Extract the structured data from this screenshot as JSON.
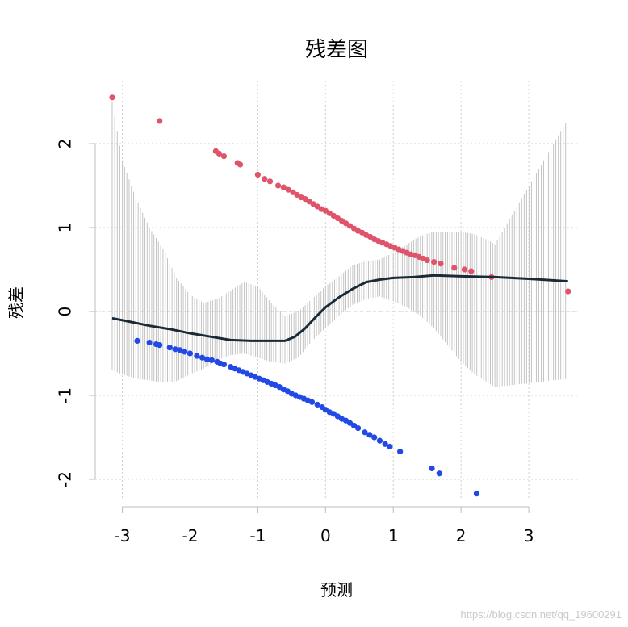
{
  "chart_data": {
    "type": "scatter",
    "title": "残差图",
    "xlabel": "预测",
    "ylabel": "残差",
    "xlim": [
      -3.4,
      3.75
    ],
    "ylim": [
      -2.25,
      2.75
    ],
    "x_ticks": [
      -3,
      -2,
      -1,
      0,
      1,
      2,
      3
    ],
    "y_ticks": [
      -2,
      -1,
      0,
      1,
      2
    ],
    "grid": true,
    "zero_line": 0,
    "colors": {
      "positive": "#df536b",
      "negative": "#2249e6",
      "fit": "#1a2a36",
      "band": "#c3c3c3"
    },
    "series": [
      {
        "values": [
          [
            -3.15,
            2.55
          ],
          [
            -2.45,
            2.27
          ],
          [
            -1.62,
            1.91
          ],
          [
            -1.57,
            1.88
          ],
          [
            -1.5,
            1.85
          ],
          [
            -1.3,
            1.77
          ],
          [
            -1.26,
            1.75
          ],
          [
            -1.0,
            1.63
          ],
          [
            -0.9,
            1.58
          ],
          [
            -0.82,
            1.55
          ],
          [
            -0.7,
            1.5
          ],
          [
            -0.62,
            1.48
          ],
          [
            -0.55,
            1.45
          ],
          [
            -0.48,
            1.42
          ],
          [
            -0.42,
            1.39
          ],
          [
            -0.36,
            1.36
          ],
          [
            -0.3,
            1.34
          ],
          [
            -0.24,
            1.31
          ],
          [
            -0.18,
            1.28
          ],
          [
            -0.12,
            1.25
          ],
          [
            -0.06,
            1.22
          ],
          [
            0.0,
            1.2
          ],
          [
            0.06,
            1.17
          ],
          [
            0.12,
            1.14
          ],
          [
            0.18,
            1.11
          ],
          [
            0.24,
            1.08
          ],
          [
            0.3,
            1.05
          ],
          [
            0.36,
            1.02
          ],
          [
            0.42,
            0.99
          ],
          [
            0.48,
            0.96
          ],
          [
            0.54,
            0.94
          ],
          [
            0.6,
            0.91
          ],
          [
            0.66,
            0.89
          ],
          [
            0.72,
            0.86
          ],
          [
            0.78,
            0.84
          ],
          [
            0.84,
            0.82
          ],
          [
            0.9,
            0.8
          ],
          [
            0.96,
            0.78
          ],
          [
            1.02,
            0.76
          ],
          [
            1.08,
            0.74
          ],
          [
            1.14,
            0.72
          ],
          [
            1.2,
            0.7
          ],
          [
            1.26,
            0.68
          ],
          [
            1.32,
            0.67
          ],
          [
            1.38,
            0.65
          ],
          [
            1.44,
            0.63
          ],
          [
            1.5,
            0.61
          ],
          [
            1.6,
            0.59
          ],
          [
            1.7,
            0.57
          ],
          [
            1.9,
            0.52
          ],
          [
            2.05,
            0.5
          ],
          [
            2.15,
            0.48
          ],
          [
            2.45,
            0.41
          ],
          [
            3.58,
            0.24
          ]
        ]
      },
      {
        "values": [
          [
            -2.78,
            -0.35
          ],
          [
            -2.6,
            -0.37
          ],
          [
            -2.5,
            -0.39
          ],
          [
            -2.45,
            -0.4
          ],
          [
            -2.3,
            -0.43
          ],
          [
            -2.22,
            -0.45
          ],
          [
            -2.15,
            -0.46
          ],
          [
            -2.08,
            -0.48
          ],
          [
            -2.0,
            -0.5
          ],
          [
            -1.9,
            -0.53
          ],
          [
            -1.82,
            -0.55
          ],
          [
            -1.75,
            -0.57
          ],
          [
            -1.68,
            -0.58
          ],
          [
            -1.6,
            -0.6
          ],
          [
            -1.55,
            -0.62
          ],
          [
            -1.5,
            -0.63
          ],
          [
            -1.4,
            -0.66
          ],
          [
            -1.34,
            -0.68
          ],
          [
            -1.28,
            -0.7
          ],
          [
            -1.22,
            -0.72
          ],
          [
            -1.16,
            -0.74
          ],
          [
            -1.1,
            -0.76
          ],
          [
            -1.04,
            -0.78
          ],
          [
            -0.98,
            -0.8
          ],
          [
            -0.92,
            -0.82
          ],
          [
            -0.86,
            -0.84
          ],
          [
            -0.8,
            -0.86
          ],
          [
            -0.74,
            -0.88
          ],
          [
            -0.68,
            -0.9
          ],
          [
            -0.62,
            -0.93
          ],
          [
            -0.56,
            -0.95
          ],
          [
            -0.5,
            -0.98
          ],
          [
            -0.44,
            -1.0
          ],
          [
            -0.38,
            -1.02
          ],
          [
            -0.32,
            -1.04
          ],
          [
            -0.26,
            -1.06
          ],
          [
            -0.2,
            -1.08
          ],
          [
            -0.12,
            -1.11
          ],
          [
            -0.05,
            -1.14
          ],
          [
            0.0,
            -1.17
          ],
          [
            0.06,
            -1.2
          ],
          [
            0.12,
            -1.22
          ],
          [
            0.18,
            -1.25
          ],
          [
            0.24,
            -1.28
          ],
          [
            0.3,
            -1.3
          ],
          [
            0.36,
            -1.33
          ],
          [
            0.42,
            -1.36
          ],
          [
            0.48,
            -1.39
          ],
          [
            0.58,
            -1.44
          ],
          [
            0.65,
            -1.47
          ],
          [
            0.72,
            -1.5
          ],
          [
            0.8,
            -1.54
          ],
          [
            0.88,
            -1.58
          ],
          [
            0.95,
            -1.61
          ],
          [
            1.1,
            -1.67
          ],
          [
            1.57,
            -1.87
          ],
          [
            1.68,
            -1.93
          ],
          [
            2.23,
            -2.17
          ]
        ]
      },
      {
        "values": [
          [
            -3.15,
            -0.08
          ],
          [
            -2.9,
            -0.12
          ],
          [
            -2.6,
            -0.17
          ],
          [
            -2.3,
            -0.21
          ],
          [
            -2.0,
            -0.26
          ],
          [
            -1.7,
            -0.3
          ],
          [
            -1.4,
            -0.34
          ],
          [
            -1.1,
            -0.35
          ],
          [
            -0.8,
            -0.35
          ],
          [
            -0.6,
            -0.35
          ],
          [
            -0.45,
            -0.3
          ],
          [
            -0.3,
            -0.2
          ],
          [
            -0.15,
            -0.07
          ],
          [
            0.0,
            0.05
          ],
          [
            0.2,
            0.17
          ],
          [
            0.4,
            0.27
          ],
          [
            0.6,
            0.35
          ],
          [
            0.8,
            0.38
          ],
          [
            1.0,
            0.4
          ],
          [
            1.3,
            0.41
          ],
          [
            1.6,
            0.43
          ],
          [
            2.0,
            0.42
          ],
          [
            2.5,
            0.41
          ],
          [
            3.0,
            0.39
          ],
          [
            3.58,
            0.36
          ]
        ]
      }
    ],
    "band": [
      [
        -3.15,
        -0.7,
        2.5
      ],
      [
        -3.0,
        -0.75,
        1.8
      ],
      [
        -2.8,
        -0.8,
        1.35
      ],
      [
        -2.6,
        -0.82,
        1.0
      ],
      [
        -2.4,
        -0.85,
        0.75
      ],
      [
        -2.2,
        -0.83,
        0.4
      ],
      [
        -2.0,
        -0.75,
        0.2
      ],
      [
        -1.8,
        -0.68,
        0.1
      ],
      [
        -1.6,
        -0.58,
        0.15
      ],
      [
        -1.4,
        -0.52,
        0.25
      ],
      [
        -1.2,
        -0.5,
        0.35
      ],
      [
        -1.0,
        -0.55,
        0.3
      ],
      [
        -0.8,
        -0.6,
        0.1
      ],
      [
        -0.6,
        -0.62,
        -0.05
      ],
      [
        -0.4,
        -0.55,
        0.0
      ],
      [
        -0.2,
        -0.35,
        0.15
      ],
      [
        0.0,
        -0.2,
        0.3
      ],
      [
        0.2,
        -0.05,
        0.42
      ],
      [
        0.4,
        0.08,
        0.55
      ],
      [
        0.6,
        0.15,
        0.6
      ],
      [
        0.8,
        0.18,
        0.62
      ],
      [
        1.0,
        0.12,
        0.7
      ],
      [
        1.2,
        0.05,
        0.8
      ],
      [
        1.4,
        -0.05,
        0.9
      ],
      [
        1.6,
        -0.2,
        0.95
      ],
      [
        1.8,
        -0.4,
        0.95
      ],
      [
        2.0,
        -0.6,
        0.95
      ],
      [
        2.2,
        -0.75,
        0.92
      ],
      [
        2.4,
        -0.85,
        0.85
      ],
      [
        2.5,
        -0.9,
        0.8
      ],
      [
        3.58,
        -0.8,
        2.3
      ]
    ]
  },
  "watermark": "https://blog.csdn.net/qq_19600291"
}
